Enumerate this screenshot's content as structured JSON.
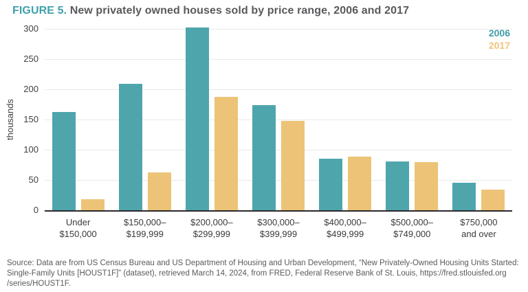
{
  "title": {
    "prefix": "FIGURE 5.",
    "text": "New privately owned houses sold by price range, 2006 and 2017"
  },
  "colors": {
    "teal": "#4fa5ac",
    "tan": "#ecc377",
    "title_accent": "#3fa0ab",
    "title_text": "#58595b",
    "axis_line": "#2a282b",
    "gridline": "#e9e9eb",
    "tick_text": "#414042",
    "source_text": "#595a5c"
  },
  "legend": [
    {
      "label": "2006",
      "color": "#3f9ea9"
    },
    {
      "label": "2017",
      "color": "#efc479"
    }
  ],
  "chart_data": {
    "type": "bar",
    "title": "New privately owned houses sold by price range, 2006 and 2017",
    "xlabel": "",
    "ylabel": "thousands",
    "ylim": [
      0,
      300
    ],
    "yticks": [
      0,
      50,
      100,
      150,
      200,
      250,
      300
    ],
    "grid": true,
    "legend_position": "top-right",
    "categories": [
      [
        "Under",
        "$150,000"
      ],
      [
        "$150,000–",
        "$199,999"
      ],
      [
        "$200,000–",
        "$299,999"
      ],
      [
        "$300,000–",
        "$399,999"
      ],
      [
        "$400,000–",
        "$499,999"
      ],
      [
        "$500,000–",
        "$749,000"
      ],
      [
        "$750,000",
        "and over"
      ]
    ],
    "series": [
      {
        "name": "2006",
        "color": "#4fa5ac",
        "values": [
          163,
          209,
          302,
          174,
          85,
          81,
          45
        ]
      },
      {
        "name": "2017",
        "color": "#ecc377",
        "values": [
          18,
          62,
          187,
          148,
          89,
          80,
          34
        ]
      }
    ]
  },
  "source": {
    "lines": [
      "Source: Data are from US Census Bureau and US Department of Housing and Urban Development, “New Privately-Owned Housing Units Started:",
      "Single-Family Units [HOUST1F]” (dataset), retrieved March 14, 2024, from FRED, Federal Reserve Bank of St. Louis, https://fred.stlouisfed.org",
      "/series/HOUST1F."
    ]
  }
}
